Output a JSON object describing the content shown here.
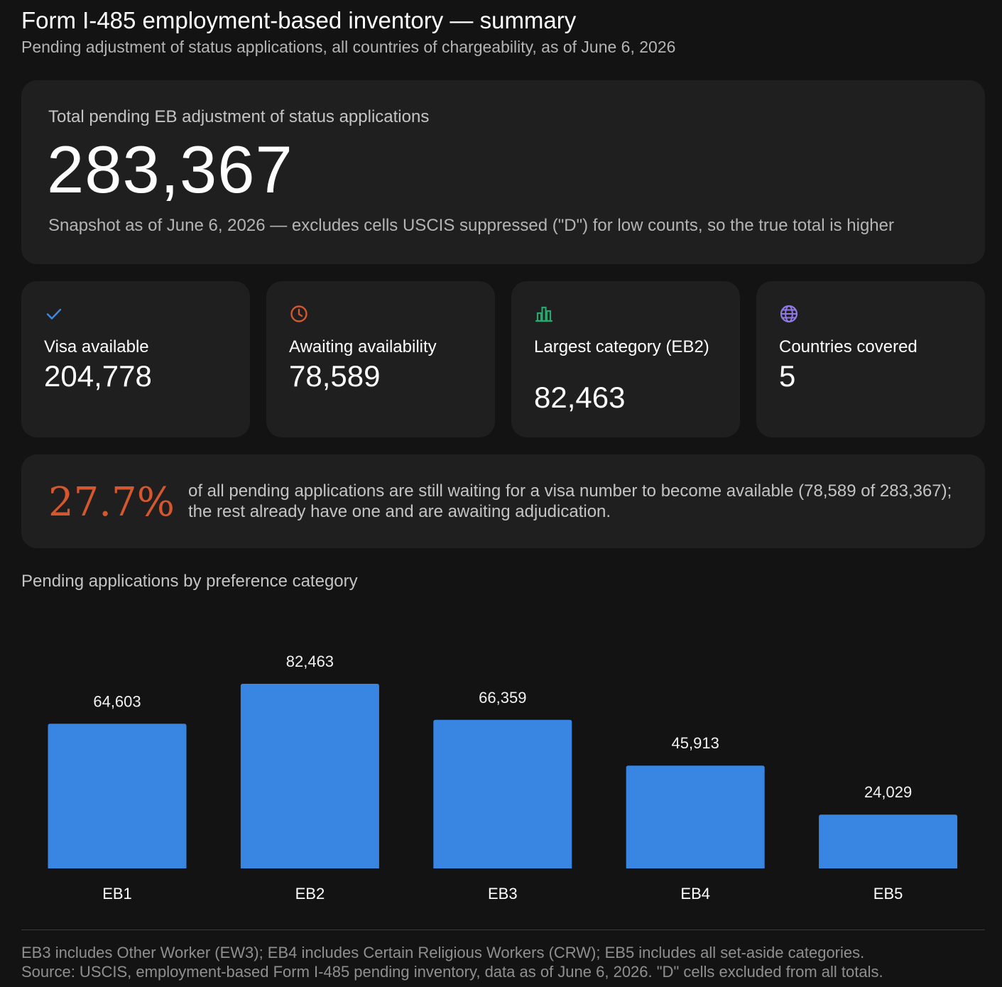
{
  "header": {
    "title": "Form I-485 employment-based inventory — summary",
    "subtitle": "Pending adjustment of status applications, all countries of chargeability, as of June 6, 2026"
  },
  "hero": {
    "label": "Total pending EB adjustment of status applications",
    "value": "283,367",
    "note": "Snapshot as of June 6, 2026 — excludes cells USCIS suppressed (\"D\") for low counts, so the true total is higher"
  },
  "stats": [
    {
      "icon": "check-icon",
      "label": "Visa available",
      "value": "204,778",
      "color": "#3b8ae6"
    },
    {
      "icon": "clock-icon",
      "label": "Awaiting availability",
      "value": "78,589",
      "color": "#d4572f"
    },
    {
      "icon": "bar-chart-icon",
      "label": "Largest category (EB2)",
      "value": "82,463",
      "color": "#27a86d"
    },
    {
      "icon": "globe-icon",
      "label": "Countries covered",
      "value": "5",
      "color": "#8f7ae6"
    }
  ],
  "insight": {
    "percent": "27.7%",
    "text": "of all pending applications are still waiting for a visa number to become available (78,589 of 283,367); the rest already have one and are awaiting adjudication."
  },
  "chart_title": "Pending applications by preference category",
  "chart_data": {
    "type": "bar",
    "categories": [
      "EB1",
      "EB2",
      "EB3",
      "EB4",
      "EB5"
    ],
    "values": [
      64603,
      82463,
      66359,
      45913,
      24029
    ],
    "value_labels": [
      "64,603",
      "82,463",
      "66,359",
      "45,913",
      "24,029"
    ],
    "bar_color": "#3886e2",
    "grid": false,
    "legend": "none"
  },
  "footer": {
    "line1": "EB3 includes Other Worker (EW3); EB4 includes Certain Religious Workers (CRW); EB5 includes all set-aside categories.",
    "line2": "Source: USCIS, employment-based Form I-485 pending inventory, data as of June 6, 2026. \"D\" cells excluded from all totals."
  }
}
